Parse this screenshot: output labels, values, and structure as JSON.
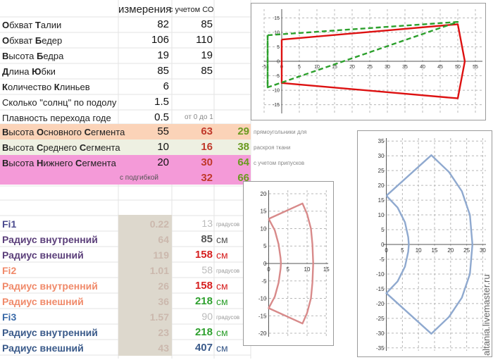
{
  "headers": {
    "measurements": "измерения",
    "with_so": "с учетом СО"
  },
  "rows": [
    {
      "label_html": "<b>О</b>бхват <b>Т</b>алии",
      "a": "82",
      "b": "85"
    },
    {
      "label_html": "<b>О</b>бхват <b>Б</b>едер",
      "a": "106",
      "b": "110"
    },
    {
      "label_html": "<b>В</b>ысота <b>Б</b>едра",
      "a": "19",
      "b": "19"
    },
    {
      "label_html": "<b>Д</b>лина <b>Ю</b>бки",
      "a": "85",
      "b": "85"
    },
    {
      "label_html": "<b>К</b>оличество <b>К</b>линьев",
      "a": "6",
      "b": ""
    },
    {
      "label_html": "Сколько \"солнц\" по подолу",
      "a": "1.5",
      "b": ""
    },
    {
      "label_html": "Плавность перехода годе",
      "a": "0.5",
      "b": "от 0 до 1"
    }
  ],
  "segments": [
    {
      "label_html": "<b>В</b>ысота <b>О</b>сновного <b>С</b>егмента",
      "a": "55",
      "b": "63",
      "c": "29",
      "note": "прямоугольники для",
      "bg": "#fbd3b8",
      "b_color": "#c0392b",
      "c_color": "#6a9a20"
    },
    {
      "label_html": "<b>В</b>ысота <b>С</b>реднего <b>С</b>егмента",
      "a": "10",
      "b": "16",
      "c": "38",
      "note": "раскроя ткани",
      "bg": "#eef0e2",
      "b_color": "#c0392b",
      "c_color": "#6a9a20"
    },
    {
      "label_html": "<b>В</b>ысота <b>Н</b>ижнего <b>С</b>егмента",
      "a": "20",
      "b": "30",
      "c": "64",
      "note": "с учетом припусков",
      "bg": "#f49ad8",
      "b_color": "#c0392b",
      "c_color": "#6a9a20"
    }
  ],
  "podgibka": {
    "label": "с подгибкой",
    "b": "32",
    "c": "66"
  },
  "radii": [
    {
      "label": "Fi1",
      "label_color": "#4b4b8f",
      "faded": "0.22",
      "mid": "13",
      "unit": "градусов",
      "unit_small": true,
      "mid_color": "#bbbbbb"
    },
    {
      "label": "Радиус внутренний",
      "label_color": "#5b3f7a",
      "faded": "64",
      "mid": "85",
      "unit": "см",
      "unit_small": false,
      "mid_color": "#555555"
    },
    {
      "label": "Радиус внешний",
      "label_color": "#5b3f7a",
      "faded": "119",
      "mid": "158",
      "unit": "см",
      "unit_small": false,
      "mid_color": "#d62020"
    },
    {
      "label": "Fi2",
      "label_color": "#f08a6a",
      "faded": "1.01",
      "mid": "58",
      "unit": "градусов",
      "unit_small": true,
      "mid_color": "#bbbbbb"
    },
    {
      "label": "Радиус внутренний",
      "label_color": "#f08a6a",
      "faded": "26",
      "mid": "158",
      "unit": "см",
      "unit_small": false,
      "mid_color": "#d62020"
    },
    {
      "label": "Радиус внешний",
      "label_color": "#f08a6a",
      "faded": "36",
      "mid": "218",
      "unit": "см",
      "unit_small": false,
      "mid_color": "#2ea02e"
    },
    {
      "label": "Fi3",
      "label_color": "#3a6aa8",
      "faded": "1.57",
      "mid": "90",
      "unit": "градусов",
      "unit_small": true,
      "mid_color": "#bbbbbb"
    },
    {
      "label": "Радиус внутренний",
      "label_color": "#3a5a8a",
      "faded": "23",
      "mid": "218",
      "unit": "см",
      "unit_small": false,
      "mid_color": "#2ea02e"
    },
    {
      "label": "Радиус внешний",
      "label_color": "#3a5a8a",
      "faded": "43",
      "mid": "407",
      "unit": "см",
      "unit_small": false,
      "mid_color": "#3a5a8a"
    }
  ],
  "watermark": "altania.livemaster.ru",
  "chart_data": [
    {
      "type": "line",
      "x_ticks": [
        "-5",
        "0",
        "5",
        "10",
        "15",
        "20",
        "25",
        "30",
        "35",
        "40",
        "45",
        "50",
        "55"
      ],
      "y_ticks": [
        "15",
        "10",
        "5",
        "0",
        "-5",
        "-10",
        "-15"
      ],
      "xlim": [
        -5,
        57
      ],
      "ylim": [
        -18,
        18
      ],
      "grid": true,
      "series": [
        {
          "color": "#dd1111",
          "style": "solid",
          "points": [
            [
              0,
              7.5
            ],
            [
              50,
              12.8
            ],
            [
              52,
              0
            ],
            [
              50,
              -12.8
            ],
            [
              0,
              -7.5
            ],
            [
              0,
              7.5
            ]
          ]
        },
        {
          "color": "#2ca02c",
          "style": "dashed",
          "points": [
            [
              -4,
              9
            ],
            [
              50,
              13.6
            ],
            [
              -4,
              -9
            ],
            [
              -4,
              9
            ]
          ]
        },
        {
          "color": "#2ca02c",
          "style": "dashed",
          "points": [
            [
              -4,
              9
            ],
            [
              -4,
              -9
            ]
          ]
        }
      ]
    },
    {
      "type": "line",
      "x_ticks": [
        "0",
        "5",
        "10",
        "15"
      ],
      "y_ticks": [
        "20",
        "15",
        "10",
        "5",
        "0",
        "-5",
        "-10",
        "-15",
        "-20"
      ],
      "xlim": [
        -1,
        15.5
      ],
      "ylim": [
        -21,
        21
      ],
      "grid": true,
      "series": [
        {
          "color": "#d88a8a",
          "style": "solid",
          "points": [
            [
              0,
              12.8
            ],
            [
              8.8,
              17.2
            ],
            [
              10.0,
              14.2
            ],
            [
              11.0,
              10.0
            ],
            [
              11.4,
              5.5
            ],
            [
              11.6,
              0
            ],
            [
              11.4,
              -5.5
            ],
            [
              11.0,
              -10.0
            ],
            [
              10.0,
              -14.2
            ],
            [
              8.8,
              -17.2
            ],
            [
              0,
              -12.8
            ],
            [
              1.6,
              -9.5
            ],
            [
              2.6,
              -5.5
            ],
            [
              3.1,
              -1.5
            ],
            [
              3.2,
              0
            ],
            [
              3.1,
              1.5
            ],
            [
              2.6,
              5.5
            ],
            [
              1.6,
              9.5
            ],
            [
              0,
              12.8
            ]
          ]
        }
      ]
    },
    {
      "type": "line",
      "x_ticks": [
        "0",
        "5",
        "10",
        "15",
        "20",
        "25",
        "30"
      ],
      "y_ticks": [
        "35",
        "30",
        "25",
        "20",
        "15",
        "10",
        "5",
        "0",
        "-5",
        "-10",
        "-15",
        "-20",
        "-25",
        "-30",
        "-35"
      ],
      "xlim": [
        -1,
        31
      ],
      "ylim": [
        -36,
        36
      ],
      "grid": true,
      "series": [
        {
          "color": "#8fa9cf",
          "style": "solid",
          "points": [
            [
              0,
              16.5
            ],
            [
              14,
              30.2
            ],
            [
              19.5,
              24.5
            ],
            [
              23.5,
              18
            ],
            [
              26,
              10
            ],
            [
              26.8,
              0
            ],
            [
              26,
              -10
            ],
            [
              23.5,
              -18
            ],
            [
              19.5,
              -24.5
            ],
            [
              14,
              -30.2
            ],
            [
              0,
              -16.5
            ],
            [
              3.5,
              -12.5
            ],
            [
              5.8,
              -7.5
            ],
            [
              6.8,
              -2.5
            ],
            [
              7,
              0
            ],
            [
              6.8,
              2.5
            ],
            [
              5.8,
              7.5
            ],
            [
              3.5,
              12.5
            ],
            [
              0,
              16.5
            ]
          ]
        }
      ]
    }
  ]
}
